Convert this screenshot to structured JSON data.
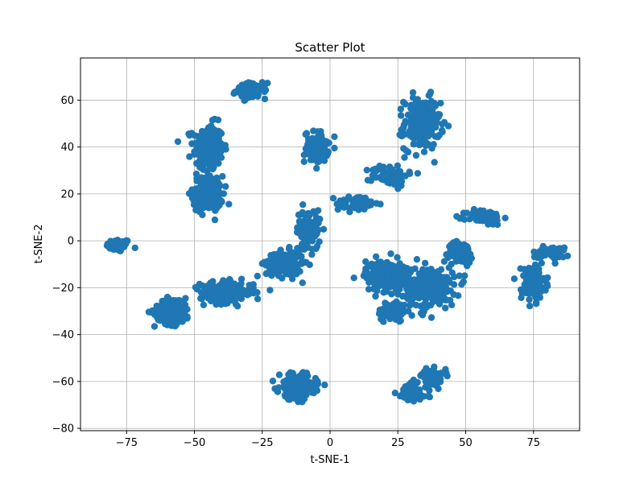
{
  "chart_data": {
    "type": "scatter",
    "title": "Scatter Plot",
    "xlabel": "t-SNE-1",
    "ylabel": "t-SNE-2",
    "xlim": [
      -92,
      92
    ],
    "ylim": [
      -81,
      78
    ],
    "xticks": [
      -75,
      -50,
      -25,
      0,
      25,
      50,
      75
    ],
    "xtick_labels": [
      "−75",
      "−50",
      "−25",
      "0",
      "25",
      "50",
      "75"
    ],
    "yticks": [
      -80,
      -60,
      -40,
      -20,
      0,
      20,
      40,
      60
    ],
    "ytick_labels": [
      "−80",
      "−60",
      "−40",
      "−20",
      "0",
      "20",
      "40",
      "60"
    ],
    "grid": true,
    "legend": false,
    "point_color": "#1f77b4",
    "clusters": [
      {
        "center": [
          -78,
          -2
        ],
        "spread": [
          4,
          2.5
        ],
        "count": 60
      },
      {
        "center": [
          -45,
          40
        ],
        "spread": [
          5,
          9
        ],
        "count": 200
      },
      {
        "center": [
          -45,
          20
        ],
        "spread": [
          5,
          7
        ],
        "count": 160
      },
      {
        "center": [
          -29,
          64
        ],
        "spread": [
          5,
          3
        ],
        "count": 90
      },
      {
        "center": [
          -5,
          40
        ],
        "spread": [
          4,
          6
        ],
        "count": 90
      },
      {
        "center": [
          34,
          50
        ],
        "spread": [
          6,
          10
        ],
        "count": 220
      },
      {
        "center": [
          22,
          28
        ],
        "spread": [
          6,
          4
        ],
        "count": 80
      },
      {
        "center": [
          10,
          16
        ],
        "spread": [
          7,
          3
        ],
        "count": 60
      },
      {
        "center": [
          57,
          10
        ],
        "spread": [
          6,
          3
        ],
        "count": 60
      },
      {
        "center": [
          -58,
          -30
        ],
        "spread": [
          6,
          5
        ],
        "count": 200
      },
      {
        "center": [
          -38,
          -22
        ],
        "spread": [
          9,
          4
        ],
        "count": 200
      },
      {
        "center": [
          -17,
          -10
        ],
        "spread": [
          6,
          5
        ],
        "count": 160
      },
      {
        "center": [
          -8,
          5
        ],
        "spread": [
          4,
          8
        ],
        "count": 100
      },
      {
        "center": [
          22,
          -15
        ],
        "spread": [
          8,
          6
        ],
        "count": 220
      },
      {
        "center": [
          37,
          -20
        ],
        "spread": [
          8,
          8
        ],
        "count": 220
      },
      {
        "center": [
          48,
          -5
        ],
        "spread": [
          4,
          4
        ],
        "count": 80
      },
      {
        "center": [
          23,
          -30
        ],
        "spread": [
          5,
          4
        ],
        "count": 80
      },
      {
        "center": [
          75,
          -18
        ],
        "spread": [
          4,
          7
        ],
        "count": 140
      },
      {
        "center": [
          82,
          -5
        ],
        "spread": [
          4,
          2
        ],
        "count": 50
      },
      {
        "center": [
          -12,
          -62
        ],
        "spread": [
          6,
          5
        ],
        "count": 180
      },
      {
        "center": [
          30,
          -65
        ],
        "spread": [
          5,
          4
        ],
        "count": 90
      },
      {
        "center": [
          38,
          -58
        ],
        "spread": [
          4,
          3
        ],
        "count": 70
      }
    ]
  }
}
